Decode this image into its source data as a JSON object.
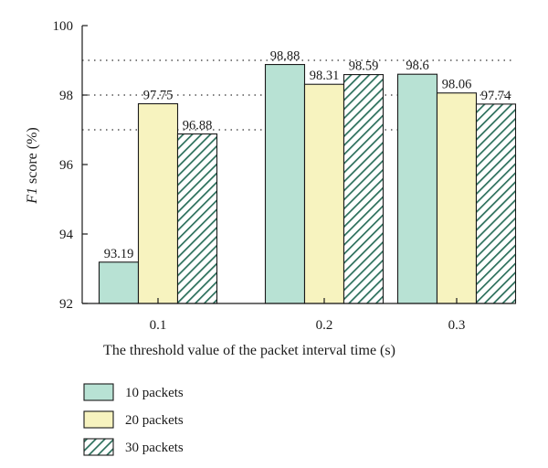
{
  "chart_data": {
    "type": "bar",
    "title": "",
    "xlabel": "The threshold value of the packet interval time (s)",
    "ylabel_italic": "F1",
    "ylabel_rest": " score (%)",
    "categories": [
      "0.1",
      "0.2",
      "0.3"
    ],
    "ylim": [
      92,
      100
    ],
    "yticks": [
      92,
      94,
      96,
      98,
      100
    ],
    "grid": "dotted horizontal at 97, 98, 99",
    "legend_position": "bottom-left",
    "series": [
      {
        "name": "10 packets",
        "values": [
          93.19,
          98.88,
          98.6
        ],
        "labels": [
          "93.19",
          "98.88",
          "98.6"
        ],
        "color": "#b8e2d4",
        "pattern": "solid"
      },
      {
        "name": "20 packets",
        "values": [
          97.75,
          98.31,
          98.06
        ],
        "labels": [
          "97.75",
          "98.31",
          "98.06"
        ],
        "color": "#f7f3bf",
        "pattern": "solid"
      },
      {
        "name": "30 packets",
        "values": [
          96.88,
          98.59,
          97.74
        ],
        "labels": [
          "96.88",
          "98.59",
          "97.74"
        ],
        "color": "#2a6e5a",
        "pattern": "diagonal-hatch"
      }
    ]
  }
}
